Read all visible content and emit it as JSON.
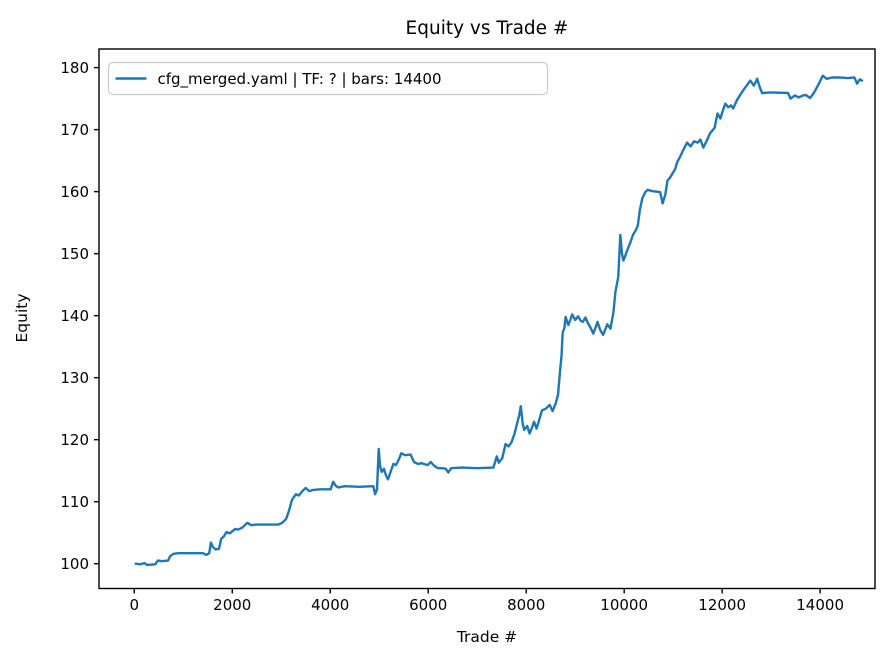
{
  "figure": {
    "background": "#ffffff",
    "spine_color": "#000000",
    "text_color": "#000000"
  },
  "chart_data": {
    "type": "line",
    "title": "Equity vs Trade #",
    "xlabel": "Trade #",
    "ylabel": "Equity",
    "xlim": [
      -720,
      15120
    ],
    "ylim": [
      96,
      183
    ],
    "xticks": [
      0,
      2000,
      4000,
      6000,
      8000,
      10000,
      12000,
      14000
    ],
    "yticks": [
      100,
      110,
      120,
      130,
      140,
      150,
      160,
      170,
      180
    ],
    "grid": false,
    "legend": {
      "position": "upper left",
      "entries": [
        {
          "label": "cfg_merged.yaml | TF: ? | bars: 14400",
          "color": "#1f77b4"
        }
      ]
    },
    "series": [
      {
        "name": "cfg_merged.yaml | TF: ? | bars: 14400",
        "color": "#1f77b4",
        "points": [
          [
            30,
            100
          ],
          [
            120,
            99.9
          ],
          [
            210,
            100.1
          ],
          [
            260,
            99.8
          ],
          [
            430,
            99.9
          ],
          [
            480,
            100.5
          ],
          [
            560,
            100.4
          ],
          [
            690,
            100.5
          ],
          [
            730,
            101.2
          ],
          [
            800,
            101.6
          ],
          [
            900,
            101.7
          ],
          [
            1150,
            101.7
          ],
          [
            1400,
            101.7
          ],
          [
            1470,
            101.4
          ],
          [
            1530,
            101.7
          ],
          [
            1565,
            103.4
          ],
          [
            1605,
            102.7
          ],
          [
            1660,
            102.3
          ],
          [
            1730,
            102.4
          ],
          [
            1775,
            104.0
          ],
          [
            1830,
            104.4
          ],
          [
            1880,
            105.1
          ],
          [
            1950,
            104.9
          ],
          [
            2060,
            105.6
          ],
          [
            2120,
            105.5
          ],
          [
            2200,
            105.8
          ],
          [
            2310,
            106.6
          ],
          [
            2390,
            106.2
          ],
          [
            2480,
            106.3
          ],
          [
            2700,
            106.3
          ],
          [
            2940,
            106.3
          ],
          [
            3020,
            106.6
          ],
          [
            3100,
            107.2
          ],
          [
            3160,
            108.6
          ],
          [
            3220,
            110.3
          ],
          [
            3300,
            111.2
          ],
          [
            3360,
            111.0
          ],
          [
            3430,
            111.7
          ],
          [
            3500,
            112.2
          ],
          [
            3570,
            111.7
          ],
          [
            3650,
            111.9
          ],
          [
            3800,
            112.0
          ],
          [
            4010,
            112.0
          ],
          [
            4060,
            113.2
          ],
          [
            4110,
            112.6
          ],
          [
            4160,
            112.3
          ],
          [
            4300,
            112.5
          ],
          [
            4600,
            112.4
          ],
          [
            4880,
            112.5
          ],
          [
            4915,
            111.2
          ],
          [
            4955,
            112.0
          ],
          [
            4990,
            118.5
          ],
          [
            5020,
            115.6
          ],
          [
            5050,
            114.8
          ],
          [
            5095,
            115.3
          ],
          [
            5140,
            114.2
          ],
          [
            5180,
            113.6
          ],
          [
            5240,
            115.0
          ],
          [
            5290,
            116.1
          ],
          [
            5340,
            115.9
          ],
          [
            5400,
            116.8
          ],
          [
            5450,
            117.8
          ],
          [
            5530,
            117.5
          ],
          [
            5640,
            117.6
          ],
          [
            5710,
            116.4
          ],
          [
            5790,
            116.1
          ],
          [
            5860,
            116.2
          ],
          [
            5990,
            115.9
          ],
          [
            6050,
            116.4
          ],
          [
            6120,
            115.8
          ],
          [
            6200,
            115.4
          ],
          [
            6290,
            115.4
          ],
          [
            6360,
            115.3
          ],
          [
            6410,
            114.7
          ],
          [
            6470,
            115.4
          ],
          [
            6700,
            115.5
          ],
          [
            7000,
            115.4
          ],
          [
            7330,
            115.5
          ],
          [
            7400,
            117.3
          ],
          [
            7440,
            116.3
          ],
          [
            7510,
            117.0
          ],
          [
            7580,
            119.3
          ],
          [
            7640,
            118.9
          ],
          [
            7700,
            119.6
          ],
          [
            7760,
            120.9
          ],
          [
            7810,
            122.5
          ],
          [
            7860,
            124.0
          ],
          [
            7890,
            125.4
          ],
          [
            7930,
            122.5
          ],
          [
            7960,
            121.6
          ],
          [
            8020,
            122.2
          ],
          [
            8070,
            121.0
          ],
          [
            8120,
            122.0
          ],
          [
            8160,
            122.9
          ],
          [
            8210,
            121.8
          ],
          [
            8260,
            123.0
          ],
          [
            8320,
            124.7
          ],
          [
            8400,
            125.0
          ],
          [
            8480,
            125.6
          ],
          [
            8540,
            124.6
          ],
          [
            8600,
            125.8
          ],
          [
            8650,
            127.2
          ],
          [
            8690,
            131.0
          ],
          [
            8720,
            133.5
          ],
          [
            8745,
            137.3
          ],
          [
            8780,
            138.0
          ],
          [
            8805,
            139.8
          ],
          [
            8860,
            138.5
          ],
          [
            8905,
            139.4
          ],
          [
            8940,
            140.2
          ],
          [
            9000,
            139.3
          ],
          [
            9060,
            139.9
          ],
          [
            9110,
            139.2
          ],
          [
            9155,
            139.0
          ],
          [
            9210,
            139.7
          ],
          [
            9260,
            138.8
          ],
          [
            9310,
            138.1
          ],
          [
            9370,
            137.1
          ],
          [
            9420,
            138.2
          ],
          [
            9455,
            139.0
          ],
          [
            9510,
            137.7
          ],
          [
            9570,
            136.9
          ],
          [
            9620,
            137.9
          ],
          [
            9655,
            138.6
          ],
          [
            9720,
            137.9
          ],
          [
            9780,
            140.5
          ],
          [
            9820,
            143.8
          ],
          [
            9880,
            146.3
          ],
          [
            9920,
            153.0
          ],
          [
            9955,
            150.0
          ],
          [
            9985,
            148.9
          ],
          [
            10030,
            149.8
          ],
          [
            10065,
            150.6
          ],
          [
            10120,
            151.7
          ],
          [
            10185,
            153.1
          ],
          [
            10240,
            153.8
          ],
          [
            10280,
            154.6
          ],
          [
            10320,
            157.0
          ],
          [
            10370,
            158.9
          ],
          [
            10430,
            159.9
          ],
          [
            10480,
            160.3
          ],
          [
            10560,
            160.1
          ],
          [
            10650,
            160.0
          ],
          [
            10735,
            159.9
          ],
          [
            10785,
            158.1
          ],
          [
            10840,
            159.5
          ],
          [
            10885,
            161.8
          ],
          [
            10940,
            162.3
          ],
          [
            10985,
            162.9
          ],
          [
            11040,
            163.6
          ],
          [
            11085,
            164.8
          ],
          [
            11140,
            165.6
          ],
          [
            11205,
            166.7
          ],
          [
            11285,
            167.9
          ],
          [
            11355,
            167.3
          ],
          [
            11425,
            168.1
          ],
          [
            11500,
            167.9
          ],
          [
            11555,
            168.4
          ],
          [
            11615,
            167.1
          ],
          [
            11690,
            168.3
          ],
          [
            11755,
            169.4
          ],
          [
            11805,
            169.9
          ],
          [
            11845,
            170.3
          ],
          [
            11905,
            172.6
          ],
          [
            11965,
            171.8
          ],
          [
            12020,
            173.2
          ],
          [
            12065,
            174.2
          ],
          [
            12125,
            173.6
          ],
          [
            12180,
            173.9
          ],
          [
            12225,
            173.4
          ],
          [
            12305,
            174.8
          ],
          [
            12410,
            176.1
          ],
          [
            12480,
            176.9
          ],
          [
            12575,
            177.9
          ],
          [
            12645,
            177.1
          ],
          [
            12715,
            178.2
          ],
          [
            12760,
            177.0
          ],
          [
            12815,
            175.9
          ],
          [
            13000,
            176.0
          ],
          [
            13345,
            175.9
          ],
          [
            13395,
            175.0
          ],
          [
            13485,
            175.5
          ],
          [
            13565,
            175.2
          ],
          [
            13650,
            175.5
          ],
          [
            13705,
            175.6
          ],
          [
            13795,
            175.1
          ],
          [
            13870,
            175.9
          ],
          [
            13955,
            177.1
          ],
          [
            14055,
            178.7
          ],
          [
            14135,
            178.2
          ],
          [
            14240,
            178.4
          ],
          [
            14400,
            178.4
          ],
          [
            14560,
            178.3
          ],
          [
            14700,
            178.4
          ],
          [
            14755,
            177.4
          ],
          [
            14810,
            178.1
          ],
          [
            14855,
            177.9
          ]
        ]
      }
    ]
  }
}
